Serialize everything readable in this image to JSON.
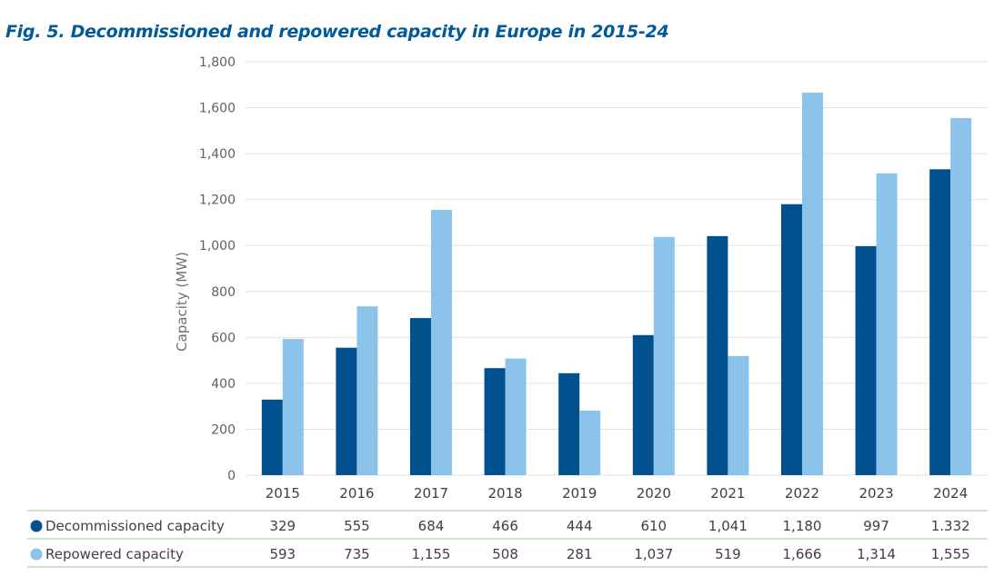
{
  "chart_data": {
    "type": "bar",
    "title": "Fig. 5. Decommissioned and repowered capacity in Europe in 2015-24",
    "ylabel": "Capacity (MW)",
    "xlabel": "",
    "ylim": [
      0,
      1800
    ],
    "ytick_step": 200,
    "grid": true,
    "legend": "table-below",
    "categories": [
      "2015",
      "2016",
      "2017",
      "2018",
      "2019",
      "2020",
      "2021",
      "2022",
      "2023",
      "2024"
    ],
    "series": [
      {
        "name": "Decommissioned capacity",
        "color": "#00518e",
        "values": [
          329,
          555,
          684,
          466,
          444,
          610,
          1041,
          1180,
          997,
          1332
        ],
        "labels": [
          "329",
          "555",
          "684",
          "466",
          "444",
          "610",
          "1,041",
          "1,180",
          "997",
          "1.332"
        ]
      },
      {
        "name": "Repowered capacity",
        "color": "#8bc3ea",
        "values": [
          593,
          735,
          1155,
          508,
          281,
          1037,
          519,
          1666,
          1314,
          1555
        ],
        "labels": [
          "593",
          "735",
          "1,155",
          "508",
          "281",
          "1,037",
          "519",
          "1,666",
          "1,314",
          "1,555"
        ]
      }
    ],
    "table_rule_color": "#9cc49a",
    "grid_color": "#e3e3e3"
  }
}
